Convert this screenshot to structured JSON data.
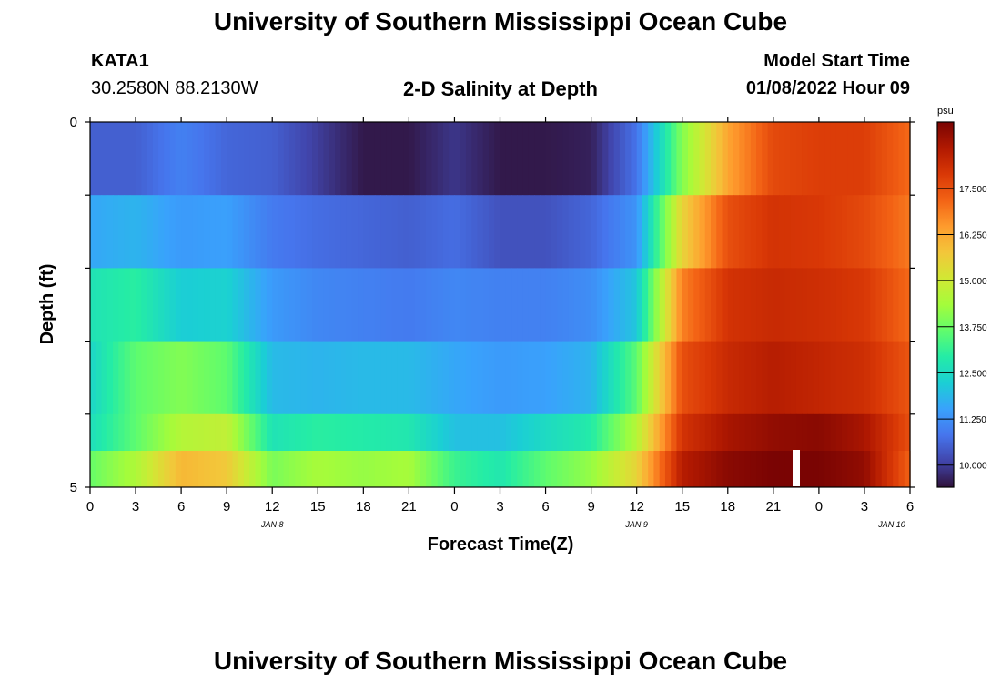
{
  "header": {
    "title": "University of Southern Mississippi Ocean Cube",
    "station_id": "KATA1",
    "station_coords": "30.2580N  88.2130W",
    "plot_title": "2-D Salinity at Depth",
    "model_start_label": "Model Start Time",
    "model_start_value": "01/08/2022 Hour 09"
  },
  "footer": {
    "title": "University of Southern Mississippi Ocean Cube"
  },
  "chart_data": {
    "type": "heatmap",
    "title": "2-D Salinity at Depth",
    "xlabel": "Forecast Time(Z)",
    "ylabel": "Depth (ft)",
    "x_tick_labels": [
      "0",
      "3",
      "6",
      "9",
      "12",
      "15",
      "18",
      "21",
      "0",
      "3",
      "6",
      "9",
      "12",
      "15",
      "18",
      "21",
      "0",
      "3",
      "6"
    ],
    "x_date_labels": [
      "JAN 8",
      "JAN 9",
      "JAN 10"
    ],
    "y_tick_labels": [
      "0",
      "5"
    ],
    "ylim": [
      0,
      5
    ],
    "grid": false,
    "x_start": "2022-01-08 00Z",
    "x_end": "2022-01-10 06Z",
    "x_step_hours": 3,
    "depth_bands_ft": [
      0,
      1,
      2,
      3,
      4,
      5
    ],
    "colorbar": {
      "unit": "psu",
      "tick_labels": [
        "17.500",
        "16.250",
        "15.000",
        "13.750",
        "12.500",
        "11.250",
        "10.000"
      ],
      "ticks": [
        17.5,
        16.25,
        15.0,
        13.75,
        12.5,
        11.25,
        10.0
      ],
      "range": [
        9.4,
        19.3
      ],
      "colors": [
        "#30123b",
        "#4145ab",
        "#4675ed",
        "#39a2fc",
        "#1bcfd4",
        "#24eca6",
        "#61fc6c",
        "#a4fc3b",
        "#d1e834",
        "#f3c63a",
        "#fe9b2d",
        "#f36315",
        "#d93806",
        "#b11901",
        "#7a0403"
      ]
    },
    "rows": [
      {
        "depth": "0-1 ft",
        "values": [
          10.5,
          10.5,
          11.0,
          10.6,
          10.5,
          10.0,
          9.5,
          9.5,
          9.9,
          9.5,
          9.5,
          9.6,
          10.8,
          14.0,
          16.3,
          17.6,
          17.8,
          17.8,
          17.1
        ]
      },
      {
        "depth": "1-2 ft",
        "values": [
          11.6,
          11.8,
          11.4,
          11.5,
          10.9,
          10.7,
          10.6,
          10.5,
          10.7,
          10.3,
          10.3,
          10.6,
          11.3,
          15.5,
          17.5,
          18.0,
          17.9,
          17.6,
          16.9
        ]
      },
      {
        "depth": "2-3 ft",
        "values": [
          12.7,
          13.0,
          12.2,
          12.3,
          11.4,
          11.1,
          11.0,
          10.9,
          11.1,
          11.0,
          11.0,
          11.2,
          12.1,
          16.8,
          18.0,
          18.2,
          18.1,
          17.9,
          17.1
        ]
      },
      {
        "depth": "3-4 ft",
        "values": [
          12.4,
          13.6,
          14.0,
          13.6,
          11.9,
          11.8,
          11.9,
          11.9,
          11.6,
          11.4,
          11.5,
          11.8,
          13.6,
          17.5,
          18.2,
          18.5,
          18.3,
          18.1,
          17.4
        ]
      },
      {
        "depth": "4-5 ft",
        "values": [
          12.6,
          13.6,
          14.6,
          14.8,
          12.7,
          13.0,
          12.9,
          12.8,
          12.0,
          12.0,
          12.5,
          12.9,
          14.6,
          18.0,
          18.7,
          19.0,
          19.1,
          18.7,
          17.5
        ]
      },
      {
        "depth": "5 ft",
        "values": [
          13.7,
          14.5,
          16.0,
          15.7,
          13.9,
          14.4,
          14.2,
          14.4,
          13.2,
          12.8,
          13.6,
          14.2,
          15.5,
          18.5,
          19.1,
          19.3,
          19.3,
          19.0,
          17.2
        ]
      }
    ]
  }
}
